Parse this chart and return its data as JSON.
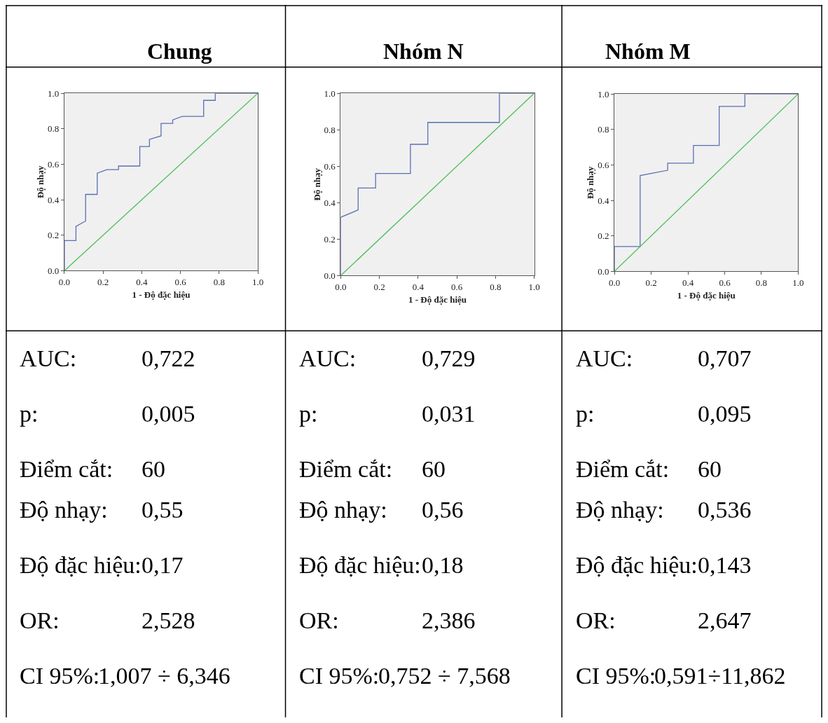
{
  "chart_data": [
    {
      "type": "line",
      "title": "Chung",
      "xlabel": "1 - Độ đặc hiệu",
      "ylabel": "Độ nhạy",
      "xlim": [
        0,
        1
      ],
      "ylim": [
        0,
        1
      ],
      "grid": false,
      "xticks": [
        {
          "value": 0,
          "label": "0.0"
        },
        {
          "value": 0.2,
          "label": "0.2"
        },
        {
          "value": 0.4,
          "label": "0.4"
        },
        {
          "value": 0.6,
          "label": "0.6"
        },
        {
          "value": 0.8,
          "label": "0.8"
        },
        {
          "value": 1,
          "label": "1.0"
        }
      ],
      "yticks": [
        {
          "value": 0,
          "label": "0.0"
        },
        {
          "value": 0.2,
          "label": "0.2"
        },
        {
          "value": 0.4,
          "label": "0.4"
        },
        {
          "value": 0.6,
          "label": "0.6"
        },
        {
          "value": 0.8,
          "label": "0.8"
        },
        {
          "value": 1,
          "label": "1.0"
        }
      ],
      "series": [
        {
          "color": "#5b6fb5",
          "x": [
            0,
            0,
            0.06,
            0.06,
            0.11,
            0.11,
            0.17,
            0.17,
            0.22,
            0.28,
            0.28,
            0.39,
            0.39,
            0.44,
            0.44,
            0.5,
            0.5,
            0.56,
            0.56,
            0.61,
            0.72,
            0.72,
            0.78,
            0.78,
            1
          ],
          "values": [
            0,
            0.17,
            0.17,
            0.25,
            0.28,
            0.43,
            0.43,
            0.55,
            0.57,
            0.57,
            0.59,
            0.59,
            0.7,
            0.7,
            0.74,
            0.76,
            0.83,
            0.83,
            0.85,
            0.87,
            0.87,
            0.96,
            0.96,
            1,
            1
          ]
        },
        {
          "color": "#4cbf55",
          "x": [
            0,
            1
          ],
          "values": [
            0,
            1
          ]
        }
      ],
      "annotations": [
        "AUC:",
        "0,722",
        "p:",
        "0,005",
        "Điểm cắt:",
        "60",
        "Độ nhạy:",
        "0,55",
        "Độ đặc hiệu:",
        "0,17",
        "OR:",
        "2,528",
        "CI 95%:",
        "1,007 ÷ 6,346"
      ]
    },
    {
      "type": "line",
      "title": "Nhóm N",
      "xlabel": "1 - Độ đặc hiệu",
      "ylabel": "Độ nhạy",
      "xlim": [
        0,
        1
      ],
      "ylim": [
        0,
        1
      ],
      "grid": false,
      "xticks": [
        {
          "value": 0,
          "label": "0.0"
        },
        {
          "value": 0.2,
          "label": "0.2"
        },
        {
          "value": 0.4,
          "label": "0.4"
        },
        {
          "value": 0.6,
          "label": "0.6"
        },
        {
          "value": 0.8,
          "label": "0.8"
        },
        {
          "value": 1,
          "label": "1.0"
        }
      ],
      "yticks": [
        {
          "value": 0,
          "label": "0.0"
        },
        {
          "value": 0.2,
          "label": "0.2"
        },
        {
          "value": 0.4,
          "label": "0.4"
        },
        {
          "value": 0.6,
          "label": "0.6"
        },
        {
          "value": 0.8,
          "label": "0.8"
        },
        {
          "value": 1,
          "label": "1.0"
        }
      ],
      "series": [
        {
          "color": "#5b6fb5",
          "x": [
            0,
            0,
            0.09,
            0.09,
            0.18,
            0.18,
            0.36,
            0.36,
            0.45,
            0.45,
            0.82,
            0.82,
            1
          ],
          "values": [
            0,
            0.32,
            0.36,
            0.48,
            0.48,
            0.56,
            0.56,
            0.72,
            0.72,
            0.84,
            0.84,
            1,
            1
          ]
        },
        {
          "color": "#4cbf55",
          "x": [
            0,
            1
          ],
          "values": [
            0,
            1
          ]
        }
      ],
      "annotations": [
        "AUC:",
        "0,729",
        "p:",
        "0,031",
        "Điểm cắt:",
        "60",
        "Độ nhạy:",
        "0,56",
        "Độ đặc hiệu:",
        "0,18",
        "OR:",
        "2,386",
        "CI 95%:",
        "0,752 ÷ 7,568"
      ]
    },
    {
      "type": "line",
      "title": "Nhóm M",
      "xlabel": "1 - Độ đặc hiệu",
      "ylabel": "Độ nhạy",
      "xlim": [
        0,
        1
      ],
      "ylim": [
        0,
        1
      ],
      "grid": false,
      "xticks": [
        {
          "value": 0,
          "label": "0.0"
        },
        {
          "value": 0.2,
          "label": "0.2"
        },
        {
          "value": 0.4,
          "label": "0.4"
        },
        {
          "value": 0.6,
          "label": "0.6"
        },
        {
          "value": 0.8,
          "label": "0.8"
        },
        {
          "value": 1,
          "label": "1.0"
        }
      ],
      "yticks": [
        {
          "value": 0,
          "label": "0.0"
        },
        {
          "value": 0.2,
          "label": "0.2"
        },
        {
          "value": 0.4,
          "label": "0.4"
        },
        {
          "value": 0.6,
          "label": "0.6"
        },
        {
          "value": 0.8,
          "label": "0.8"
        },
        {
          "value": 1,
          "label": "1.0"
        }
      ],
      "series": [
        {
          "color": "#5b6fb5",
          "x": [
            0,
            0,
            0.14,
            0.14,
            0.29,
            0.29,
            0.43,
            0.43,
            0.57,
            0.57,
            0.71,
            0.71,
            1
          ],
          "values": [
            0,
            0.14,
            0.14,
            0.54,
            0.57,
            0.61,
            0.61,
            0.71,
            0.71,
            0.93,
            0.93,
            1,
            1
          ]
        },
        {
          "color": "#4cbf55",
          "x": [
            0,
            1
          ],
          "values": [
            0,
            1
          ]
        }
      ],
      "annotations": [
        "AUC:",
        "0,707",
        "p:",
        "0,095",
        "Điểm cắt:",
        "60",
        "Độ nhạy:",
        "0,536",
        "Độ đặc hiệu:",
        "0,143",
        "OR:",
        "2,647",
        "CI 95%:",
        "0,591÷11,862"
      ]
    }
  ]
}
